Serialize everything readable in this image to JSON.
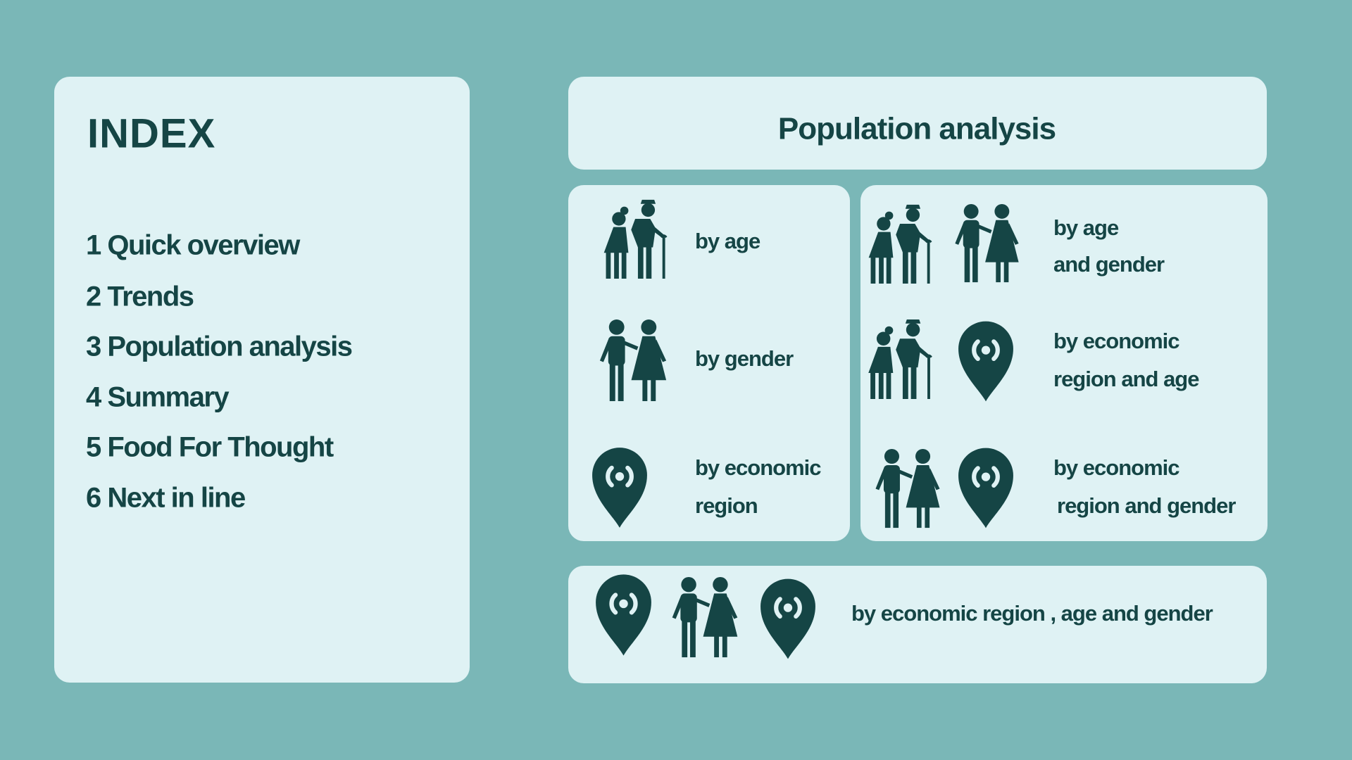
{
  "index": {
    "title": "INDEX",
    "items": [
      "1 Quick overview",
      "2 Trends",
      "3 Population analysis",
      "4 Summary",
      "5 Food For Thought",
      "6 Next in line"
    ]
  },
  "main": {
    "title": "Population analysis",
    "cells": [
      {
        "lines": [
          "by age"
        ]
      },
      {
        "lines": [
          "by gender"
        ]
      },
      {
        "lines": [
          "by economic",
          "region"
        ]
      },
      {
        "lines": [
          "by age",
          "and gender"
        ]
      },
      {
        "lines": [
          "by economic",
          "region and age"
        ]
      },
      {
        "lines": [
          "by economic",
          "region and gender"
        ]
      },
      {
        "lines": [
          "by economic region , age and gender"
        ]
      }
    ]
  }
}
